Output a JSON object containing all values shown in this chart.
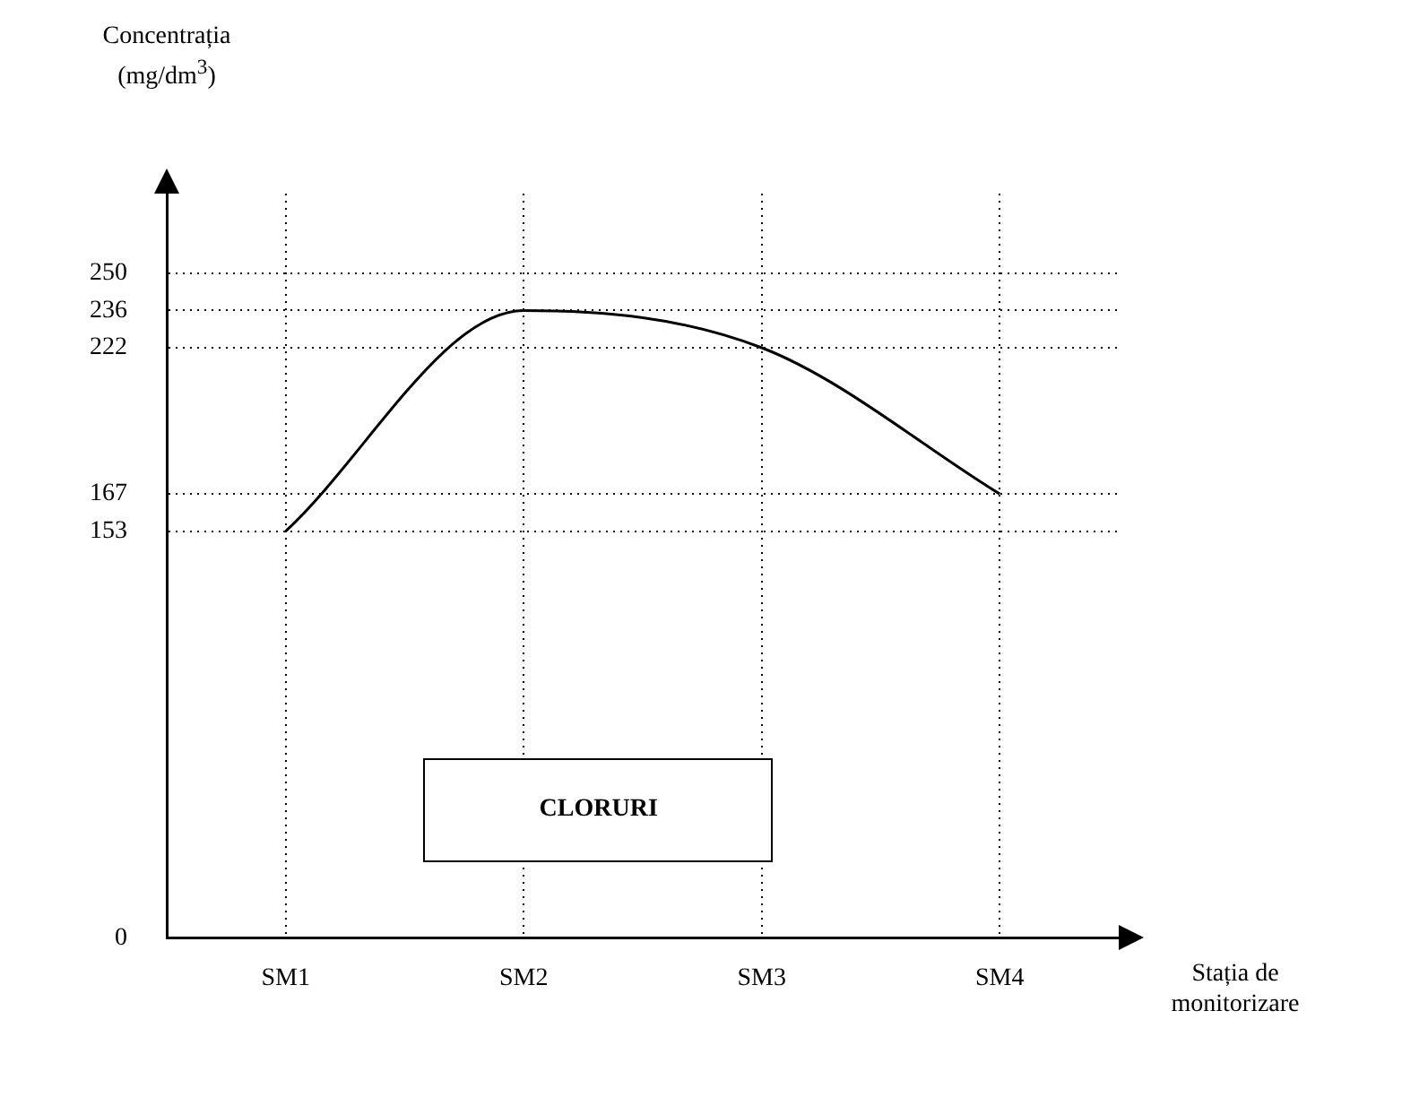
{
  "chart_data": {
    "type": "line",
    "title": "CLORURI",
    "ylabel": "Concentrația (mg/dm$^{3}$)",
    "xlabel": "Stația de monitorizare",
    "categories": [
      "SM1",
      "SM2",
      "SM3",
      "SM4"
    ],
    "series": [
      {
        "color": "#000000",
        "values": [
          153,
          236,
          222,
          167
        ]
      }
    ],
    "ylim": [
      0,
      280
    ],
    "yticks": [
      0,
      153,
      167,
      222,
      236,
      250
    ],
    "grid": true,
    "marker": "none",
    "line_style": "solid"
  }
}
